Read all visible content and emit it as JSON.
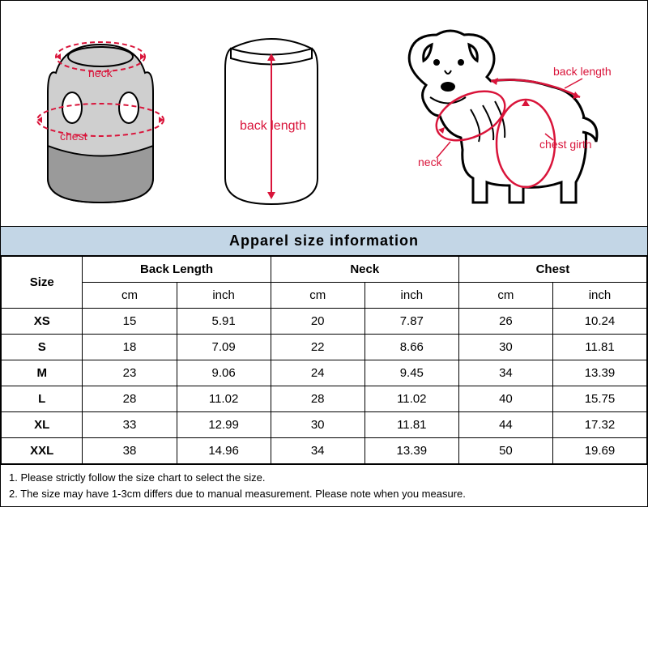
{
  "title": "Apparel  size  information",
  "diagram_labels": {
    "neck1": "neck",
    "chest1": "chest",
    "back1": "back length",
    "back2": "back length",
    "neck2": "neck",
    "chest2": "chest girth"
  },
  "table": {
    "size_header": "Size",
    "groups": [
      "Back Length",
      "Neck",
      "Chest"
    ],
    "units": [
      "cm",
      "inch",
      "cm",
      "inch",
      "cm",
      "inch"
    ],
    "rows": [
      {
        "size": "XS",
        "bl_cm": "15",
        "bl_in": "5.91",
        "n_cm": "20",
        "n_in": "7.87",
        "c_cm": "26",
        "c_in": "10.24"
      },
      {
        "size": "S",
        "bl_cm": "18",
        "bl_in": "7.09",
        "n_cm": "22",
        "n_in": "8.66",
        "c_cm": "30",
        "c_in": "11.81"
      },
      {
        "size": "M",
        "bl_cm": "23",
        "bl_in": "9.06",
        "n_cm": "24",
        "n_in": "9.45",
        "c_cm": "34",
        "c_in": "13.39"
      },
      {
        "size": "L",
        "bl_cm": "28",
        "bl_in": "11.02",
        "n_cm": "28",
        "n_in": "11.02",
        "c_cm": "40",
        "c_in": "15.75"
      },
      {
        "size": "XL",
        "bl_cm": "33",
        "bl_in": "12.99",
        "n_cm": "30",
        "n_in": "11.81",
        "c_cm": "44",
        "c_in": "17.32"
      },
      {
        "size": "XXL",
        "bl_cm": "38",
        "bl_in": "14.96",
        "n_cm": "34",
        "n_in": "13.39",
        "c_cm": "50",
        "c_in": "19.69"
      }
    ]
  },
  "notes": {
    "n1": "1. Please strictly follow the size chart  to select the size.",
    "n2": "2. The size may have 1-3cm differs due to manual measurement. Please note when you measure."
  },
  "col_widths": {
    "size": "12.6%",
    "sub": "14.57%"
  },
  "colors": {
    "header_bg": "#c3d6e6",
    "diagram_red": "#d9143a",
    "garment_grey": "#cfcfcf",
    "garment_dark": "#9a9a9a",
    "line": "#000000"
  }
}
